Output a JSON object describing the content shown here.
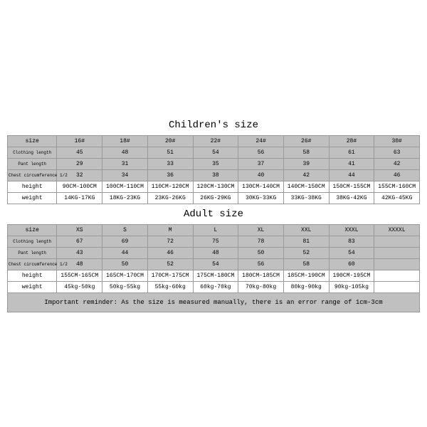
{
  "children": {
    "title": "Children's size",
    "rows": [
      {
        "label": "size",
        "shaded": true,
        "small": false,
        "cells": [
          "16#",
          "18#",
          "20#",
          "22#",
          "24#",
          "26#",
          "28#",
          "30#"
        ]
      },
      {
        "label": "Clothing length",
        "shaded": true,
        "small": true,
        "cells": [
          "45",
          "48",
          "51",
          "54",
          "56",
          "58",
          "61",
          "63"
        ]
      },
      {
        "label": "Pant length",
        "shaded": true,
        "small": true,
        "cells": [
          "29",
          "31",
          "33",
          "35",
          "37",
          "39",
          "41",
          "42"
        ]
      },
      {
        "label": "Chest circumference 1/2",
        "shaded": true,
        "small": true,
        "cells": [
          "32",
          "34",
          "36",
          "38",
          "40",
          "42",
          "44",
          "46"
        ]
      },
      {
        "label": "height",
        "shaded": false,
        "small": false,
        "cells": [
          "90CM-100CM",
          "100CM-110CM",
          "110CM-120CM",
          "120CM-130CM",
          "130CM-140CM",
          "140CM-150CM",
          "150CM-155CM",
          "155CM-160CM"
        ]
      },
      {
        "label": "weight",
        "shaded": false,
        "small": false,
        "cells": [
          "14KG-17KG",
          "18KG-23KG",
          "23KG-26KG",
          "26KG-29KG",
          "30KG-33KG",
          "33KG-38KG",
          "38KG-42KG",
          "42KG-45KG"
        ]
      }
    ]
  },
  "adult": {
    "title": "Adult size",
    "rows": [
      {
        "label": "size",
        "shaded": true,
        "small": false,
        "cells": [
          "XS",
          "S",
          "M",
          "L",
          "XL",
          "XXL",
          "XXXL",
          "XXXXL"
        ]
      },
      {
        "label": "Clothing length",
        "shaded": true,
        "small": true,
        "cells": [
          "67",
          "69",
          "72",
          "75",
          "78",
          "81",
          "83",
          ""
        ]
      },
      {
        "label": "Pant length",
        "shaded": true,
        "small": true,
        "cells": [
          "43",
          "44",
          "46",
          "48",
          "50",
          "52",
          "54",
          ""
        ]
      },
      {
        "label": "Chest circumference 1/2",
        "shaded": true,
        "small": true,
        "cells": [
          "48",
          "50",
          "52",
          "54",
          "56",
          "58",
          "60",
          ""
        ]
      },
      {
        "label": "height",
        "shaded": false,
        "small": false,
        "cells": [
          "155CM-165CM",
          "165CM-170CM",
          "170CM-175CM",
          "175CM-180CM",
          "180CM-185CM",
          "185CM-190CM",
          "190CM-195CM",
          ""
        ]
      },
      {
        "label": "weight",
        "shaded": false,
        "small": false,
        "cells": [
          "45kg-50kg",
          "50kg-55kg",
          "55kg-60kg",
          "60kg-70kg",
          "70kg-80kg",
          "80kg-90kg",
          "90kg-105kg",
          ""
        ]
      }
    ]
  },
  "reminder": "Important reminder: As the size is measured manually, there is an error range of 1cm-3cm",
  "style": {
    "shaded_bg": "#c0c0c0",
    "border_color": "#999999",
    "background": "#ffffff",
    "title_fontsize": 14,
    "cell_fontsize": 8,
    "small_label_fontsize": 6,
    "reminder_fontsize": 9,
    "font_family": "Courier New, monospace",
    "col_count": 8,
    "label_col_width_pct": 12
  }
}
